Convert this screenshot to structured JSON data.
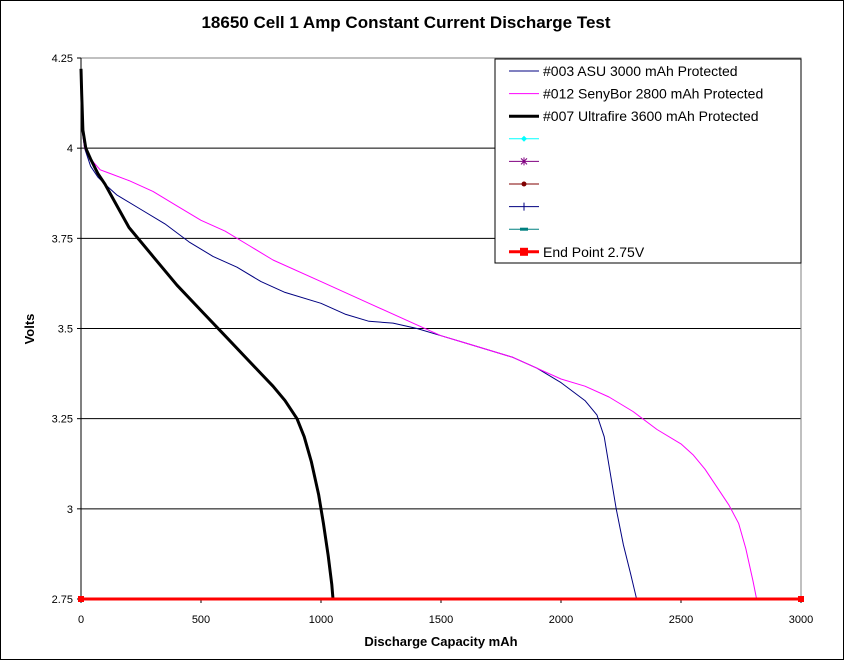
{
  "chart_data": {
    "type": "line",
    "title": "18650 Cell 1 Amp Constant Current Discharge Test",
    "xlabel": "Discharge Capacity mAh",
    "ylabel": "Volts",
    "xlim": [
      0,
      3000
    ],
    "ylim": [
      2.75,
      4.25
    ],
    "x_ticks": [
      "0",
      "500",
      "1000",
      "1500",
      "2000",
      "2500",
      "3000"
    ],
    "x_tick_values": [
      0,
      500,
      1000,
      1500,
      2000,
      2500,
      3000
    ],
    "y_ticks": [
      "2.75",
      "3",
      "3.25",
      "3.5",
      "3.75",
      "4",
      "4.25"
    ],
    "y_tick_values": [
      2.75,
      3.0,
      3.25,
      3.5,
      3.75,
      4.0,
      4.25
    ],
    "grid": "horizontal",
    "legend_position": "top-right",
    "series": [
      {
        "name": "#003 ASU 3000 mAh Protected",
        "color": "#000080",
        "width": "thin",
        "points": [
          [
            0,
            4.18
          ],
          [
            5,
            4.05
          ],
          [
            15,
            4.0
          ],
          [
            40,
            3.95
          ],
          [
            70,
            3.92
          ],
          [
            100,
            3.9
          ],
          [
            150,
            3.87
          ],
          [
            250,
            3.83
          ],
          [
            350,
            3.79
          ],
          [
            450,
            3.74
          ],
          [
            550,
            3.7
          ],
          [
            650,
            3.67
          ],
          [
            750,
            3.63
          ],
          [
            850,
            3.6
          ],
          [
            1000,
            3.57
          ],
          [
            1100,
            3.54
          ],
          [
            1200,
            3.52
          ],
          [
            1300,
            3.515
          ],
          [
            1400,
            3.5
          ],
          [
            1500,
            3.48
          ],
          [
            1600,
            3.46
          ],
          [
            1700,
            3.44
          ],
          [
            1800,
            3.42
          ],
          [
            1900,
            3.39
          ],
          [
            2000,
            3.35
          ],
          [
            2100,
            3.3
          ],
          [
            2150,
            3.26
          ],
          [
            2180,
            3.2
          ],
          [
            2200,
            3.12
          ],
          [
            2230,
            3.0
          ],
          [
            2260,
            2.9
          ],
          [
            2290,
            2.82
          ],
          [
            2315,
            2.75
          ]
        ]
      },
      {
        "name": "#012 SenyBor 2800 mAh Protected",
        "color": "#ff00ff",
        "width": "thin",
        "points": [
          [
            0,
            4.18
          ],
          [
            5,
            4.05
          ],
          [
            15,
            4.0
          ],
          [
            40,
            3.97
          ],
          [
            80,
            3.94
          ],
          [
            120,
            3.93
          ],
          [
            200,
            3.91
          ],
          [
            300,
            3.88
          ],
          [
            400,
            3.84
          ],
          [
            500,
            3.8
          ],
          [
            600,
            3.77
          ],
          [
            700,
            3.73
          ],
          [
            800,
            3.69
          ],
          [
            1000,
            3.63
          ],
          [
            1200,
            3.57
          ],
          [
            1400,
            3.51
          ],
          [
            1500,
            3.48
          ],
          [
            1600,
            3.46
          ],
          [
            1700,
            3.44
          ],
          [
            1800,
            3.42
          ],
          [
            1900,
            3.39
          ],
          [
            2000,
            3.36
          ],
          [
            2100,
            3.34
          ],
          [
            2200,
            3.31
          ],
          [
            2300,
            3.27
          ],
          [
            2400,
            3.22
          ],
          [
            2500,
            3.18
          ],
          [
            2550,
            3.15
          ],
          [
            2600,
            3.11
          ],
          [
            2650,
            3.06
          ],
          [
            2700,
            3.01
          ],
          [
            2740,
            2.96
          ],
          [
            2770,
            2.89
          ],
          [
            2800,
            2.8
          ],
          [
            2815,
            2.75
          ]
        ]
      },
      {
        "name": "#007 Ultrafire 3600 mAh Protected",
        "color": "#000000",
        "width": "thick",
        "points": [
          [
            0,
            4.22
          ],
          [
            3,
            4.15
          ],
          [
            8,
            4.05
          ],
          [
            20,
            4.0
          ],
          [
            40,
            3.97
          ],
          [
            70,
            3.93
          ],
          [
            100,
            3.9
          ],
          [
            150,
            3.84
          ],
          [
            200,
            3.78
          ],
          [
            300,
            3.7
          ],
          [
            400,
            3.62
          ],
          [
            500,
            3.55
          ],
          [
            600,
            3.48
          ],
          [
            700,
            3.41
          ],
          [
            800,
            3.34
          ],
          [
            850,
            3.3
          ],
          [
            900,
            3.25
          ],
          [
            930,
            3.2
          ],
          [
            960,
            3.13
          ],
          [
            990,
            3.04
          ],
          [
            1010,
            2.96
          ],
          [
            1030,
            2.87
          ],
          [
            1045,
            2.79
          ],
          [
            1050,
            2.75
          ]
        ]
      },
      {
        "name": "",
        "color": "#00ffff",
        "width": "marker",
        "marker": "diamond",
        "points": []
      },
      {
        "name": "",
        "color": "#800080",
        "width": "marker",
        "marker": "asterisk",
        "points": []
      },
      {
        "name": "",
        "color": "#800000",
        "width": "marker",
        "marker": "circle",
        "points": []
      },
      {
        "name": "",
        "color": "#000080",
        "width": "marker",
        "marker": "plus",
        "points": []
      },
      {
        "name": "",
        "color": "#008080",
        "width": "marker",
        "marker": "dash",
        "points": []
      },
      {
        "name": "End Point 2.75V",
        "color": "#ff0000",
        "width": "thick",
        "marker": "square",
        "points": [
          [
            0,
            2.75
          ],
          [
            3000,
            2.75
          ]
        ]
      }
    ]
  }
}
